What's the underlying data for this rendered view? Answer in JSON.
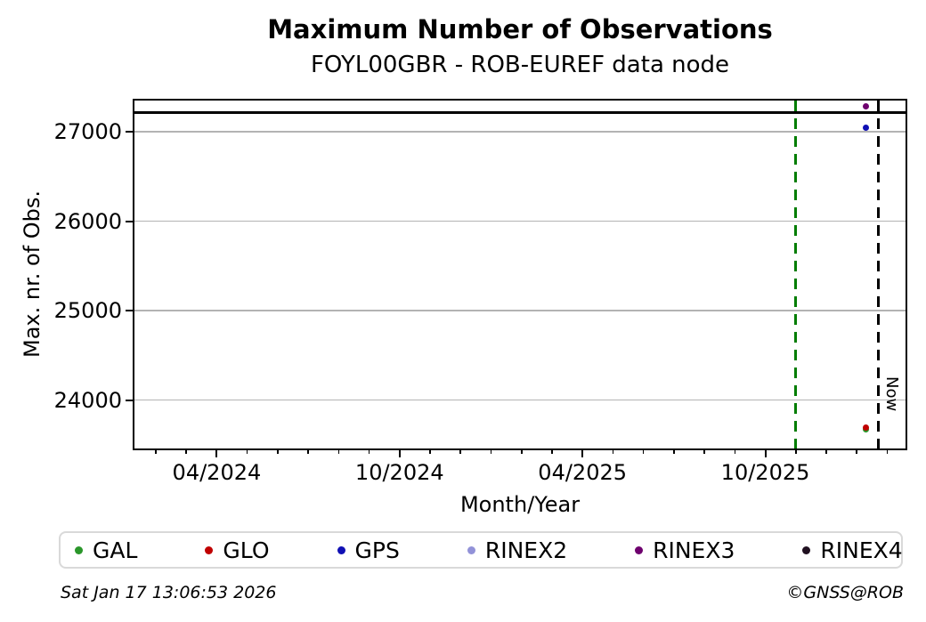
{
  "footer": {
    "timestamp": "Sat Jan 17 13:06:53 2026",
    "copyright": "©GNSS@ROB"
  },
  "chart_data": {
    "type": "scatter",
    "title": "Maximum Number of Observations",
    "subtitle": "FOYL00GBR - ROB-EUREF data node",
    "xlabel": "Month/Year",
    "ylabel": "Max. nr. of Obs.",
    "grid": "horizontal",
    "legend_position": "bottom",
    "x_axis": {
      "unit": "months_since_2024_01",
      "lim": [
        0.3,
        25.6
      ],
      "major_ticks": [
        {
          "t": 3,
          "label": "04/2024"
        },
        {
          "t": 9,
          "label": "10/2024"
        },
        {
          "t": 15,
          "label": "04/2025"
        },
        {
          "t": 21,
          "label": "10/2025"
        }
      ],
      "minor_tick_step": 1,
      "minor_tick_range": [
        1,
        25
      ]
    },
    "y_axis": {
      "lim": [
        23460,
        27350
      ],
      "ticks": [
        {
          "v": 24000,
          "label": "24000"
        },
        {
          "v": 25000,
          "label": "25000"
        },
        {
          "v": 26000,
          "label": "26000"
        },
        {
          "v": 27000,
          "label": "27000"
        }
      ]
    },
    "series": [
      {
        "name": "GAL",
        "color": "#2a962a",
        "points": [
          {
            "month": "01/2026",
            "t": 24.3,
            "value": 23675
          }
        ]
      },
      {
        "name": "GLO",
        "color": "#c00000",
        "points": [
          {
            "month": "01/2026",
            "t": 24.3,
            "value": 23690
          }
        ]
      },
      {
        "name": "GPS",
        "color": "#1010b4",
        "points": [
          {
            "month": "01/2026",
            "t": 24.3,
            "value": 27050
          }
        ]
      },
      {
        "name": "RINEX2",
        "color": "#9292d8",
        "points": []
      },
      {
        "name": "RINEX3",
        "color": "#6e006e",
        "points": [
          {
            "month": "01/2026",
            "t": 24.3,
            "value": 27290
          }
        ]
      },
      {
        "name": "RINEX4",
        "color": "#201020",
        "points": []
      }
    ],
    "annotations": {
      "hlines": [
        {
          "value": 27220,
          "color": "#000000",
          "style": "solid"
        }
      ],
      "vlines": [
        {
          "t": 22.0,
          "month": "11/2025",
          "color": "#007d00",
          "style": "dashed",
          "label": ""
        },
        {
          "t": 24.7,
          "month": "01/2026",
          "color": "#000000",
          "style": "dashed",
          "label": "Now"
        }
      ]
    }
  }
}
